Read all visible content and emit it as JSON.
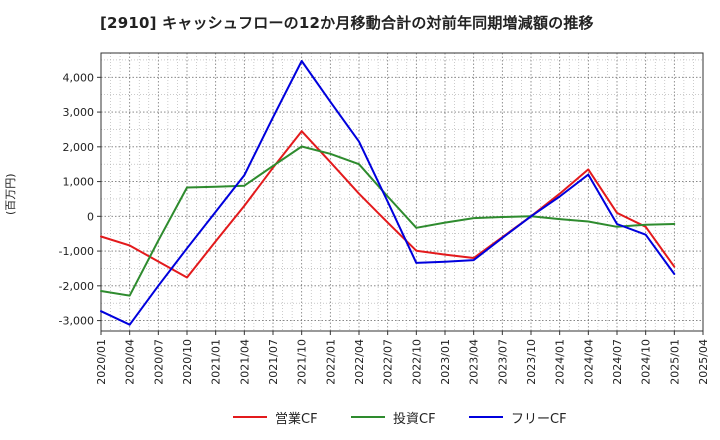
{
  "chart_data": {
    "type": "line",
    "title": "[2910]  キャッシュフローの12か月移動合計の対前年同期増減額の推移",
    "xlabel": "",
    "ylabel": "(百万円)",
    "x": [
      "2020/01",
      "2020/04",
      "2020/07",
      "2020/10",
      "2021/01",
      "2021/04",
      "2021/07",
      "2021/10",
      "2022/01",
      "2022/04",
      "2022/07",
      "2022/10",
      "2023/01",
      "2023/04",
      "2023/07",
      "2023/10",
      "2024/01",
      "2024/04",
      "2024/07",
      "2024/10",
      "2025/01",
      "2025/04"
    ],
    "ylim": [
      -3300,
      4700
    ],
    "yticks": [
      -3000,
      -2000,
      -1000,
      0,
      1000,
      2000,
      3000,
      4000
    ],
    "ytick_labels": [
      "-3,000",
      "-2,000",
      "-1,000",
      "0",
      "1,000",
      "2,000",
      "3,000",
      "4,000"
    ],
    "grid": true,
    "legend_position": "bottom",
    "series": [
      {
        "name": "営業CF",
        "color": "#e31a1c",
        "values": [
          -580,
          -840,
          -1300,
          -1760,
          -720,
          300,
          1400,
          2450,
          1560,
          650,
          -180,
          -990,
          -1100,
          -1200,
          -600,
          0,
          650,
          1350,
          100,
          -300,
          -1450,
          null
        ]
      },
      {
        "name": "投資CF",
        "color": "#2e8b2e",
        "values": [
          -2150,
          -2280,
          -700,
          830,
          850,
          880,
          1450,
          2010,
          1800,
          1500,
          570,
          -330,
          -180,
          -50,
          -20,
          0,
          -80,
          -150,
          -300,
          -240,
          -220,
          null
        ]
      },
      {
        "name": "フリーCF",
        "color": "#0000dd",
        "values": [
          -2730,
          -3120,
          -2000,
          -920,
          130,
          1180,
          2850,
          4470,
          3300,
          2150,
          420,
          -1340,
          -1310,
          -1260,
          -620,
          0,
          570,
          1200,
          -220,
          -530,
          -1660,
          null
        ]
      }
    ]
  }
}
